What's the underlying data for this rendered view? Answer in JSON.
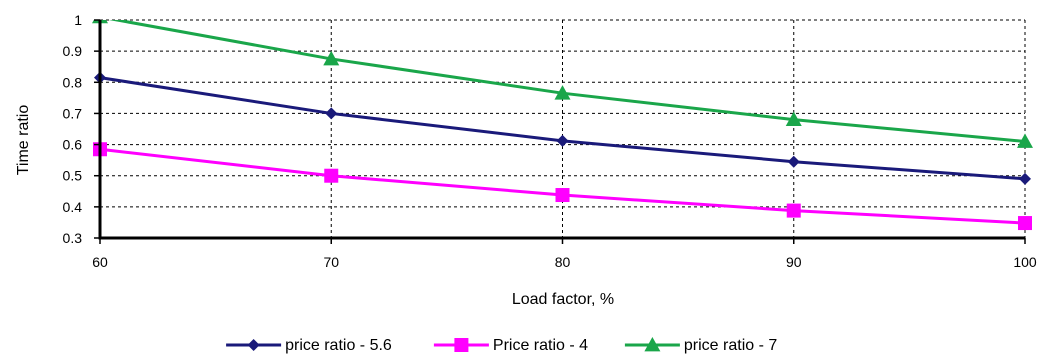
{
  "chart_data": {
    "type": "line",
    "title": "",
    "xlabel": "Load factor, %",
    "ylabel": "Time ratio",
    "x": [
      60,
      70,
      80,
      90,
      100
    ],
    "xlim": [
      60,
      100
    ],
    "ylim": [
      0.3,
      1.0
    ],
    "x_ticks": [
      "60",
      "70",
      "80",
      "90",
      "100"
    ],
    "y_ticks": [
      "0.3",
      "0.4",
      "0.5",
      "0.6",
      "0.7",
      "0.8",
      "0.9",
      "1"
    ],
    "grid": true,
    "legend_position": "bottom",
    "series": [
      {
        "name": "price ratio - 5.6",
        "values": [
          0.815,
          0.7,
          0.612,
          0.545,
          0.49
        ],
        "color": "#1a1a7a",
        "marker": "diamond"
      },
      {
        "name": "Price ratio - 4",
        "values": [
          0.585,
          0.5,
          0.438,
          0.388,
          0.348
        ],
        "color": "#ff00ff",
        "marker": "square"
      },
      {
        "name": "price ratio - 7",
        "values": [
          1.01,
          0.875,
          0.765,
          0.68,
          0.61
        ],
        "color": "#1aa64a",
        "marker": "triangle"
      }
    ]
  }
}
